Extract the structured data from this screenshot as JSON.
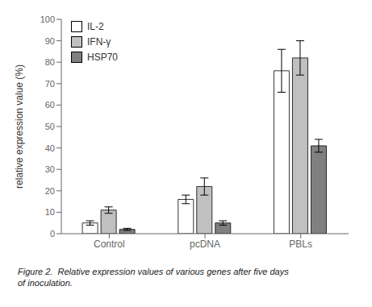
{
  "chart_data": {
    "type": "bar",
    "categories": [
      "Control",
      "pcDNA",
      "PBLs"
    ],
    "series": [
      {
        "name": "IL-2",
        "color": "#ffffff",
        "values": [
          5,
          16,
          76
        ],
        "errors": [
          1,
          2,
          10
        ]
      },
      {
        "name": "IFN-γ",
        "color": "#c0c0c0",
        "values": [
          11,
          22,
          82
        ],
        "errors": [
          1.5,
          4,
          8
        ]
      },
      {
        "name": "HSP70",
        "color": "#808080",
        "values": [
          2,
          5,
          41
        ],
        "errors": [
          0.5,
          1,
          3
        ]
      }
    ],
    "ylabel": "relative expression value (%)",
    "ylim": [
      0,
      100
    ],
    "yticks": [
      0,
      10,
      20,
      30,
      40,
      50,
      60,
      70,
      80,
      90,
      100
    ],
    "legend": "upper left",
    "grid": false,
    "annotations": [
      "Figure 2.  Relative expression values of various genes after five days\nof inoculation."
    ]
  }
}
